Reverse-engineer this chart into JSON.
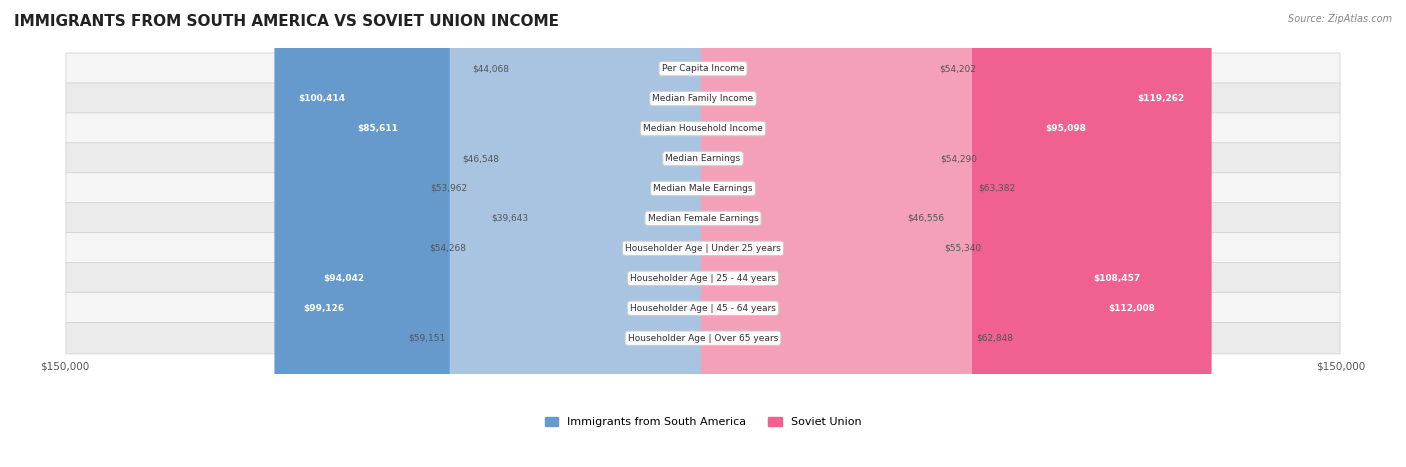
{
  "title": "IMMIGRANTS FROM SOUTH AMERICA VS SOVIET UNION INCOME",
  "source": "Source: ZipAtlas.com",
  "categories": [
    "Per Capita Income",
    "Median Family Income",
    "Median Household Income",
    "Median Earnings",
    "Median Male Earnings",
    "Median Female Earnings",
    "Householder Age | Under 25 years",
    "Householder Age | 25 - 44 years",
    "Householder Age | 45 - 64 years",
    "Householder Age | Over 65 years"
  ],
  "south_america_values": [
    44068,
    100414,
    85611,
    46548,
    53962,
    39643,
    54268,
    94042,
    99126,
    59151
  ],
  "soviet_union_values": [
    54202,
    119262,
    95098,
    54290,
    63382,
    46556,
    55340,
    108457,
    112008,
    62848
  ],
  "south_america_labels": [
    "$44,068",
    "$100,414",
    "$85,611",
    "$46,548",
    "$53,962",
    "$39,643",
    "$54,268",
    "$94,042",
    "$99,126",
    "$59,151"
  ],
  "soviet_union_labels": [
    "$54,202",
    "$119,262",
    "$95,098",
    "$54,290",
    "$63,382",
    "$46,556",
    "$55,340",
    "$108,457",
    "$112,008",
    "$62,848"
  ],
  "max_value": 150000,
  "south_america_color_bar": "#a8c4e0",
  "soviet_union_color_bar": "#f4a0b8",
  "south_america_color_highlight": "#6699cc",
  "soviet_union_color_highlight": "#f06090",
  "label_color_outside": "#555555",
  "label_color_inside": "#ffffff",
  "background_color": "#ffffff",
  "row_bg_color": "#f0f0f0",
  "legend_south_america": "Immigrants from South America",
  "legend_soviet_union": "Soviet Union",
  "axis_label_left": "$150,000",
  "axis_label_right": "$150,000",
  "threshold_inside_label": 20000
}
